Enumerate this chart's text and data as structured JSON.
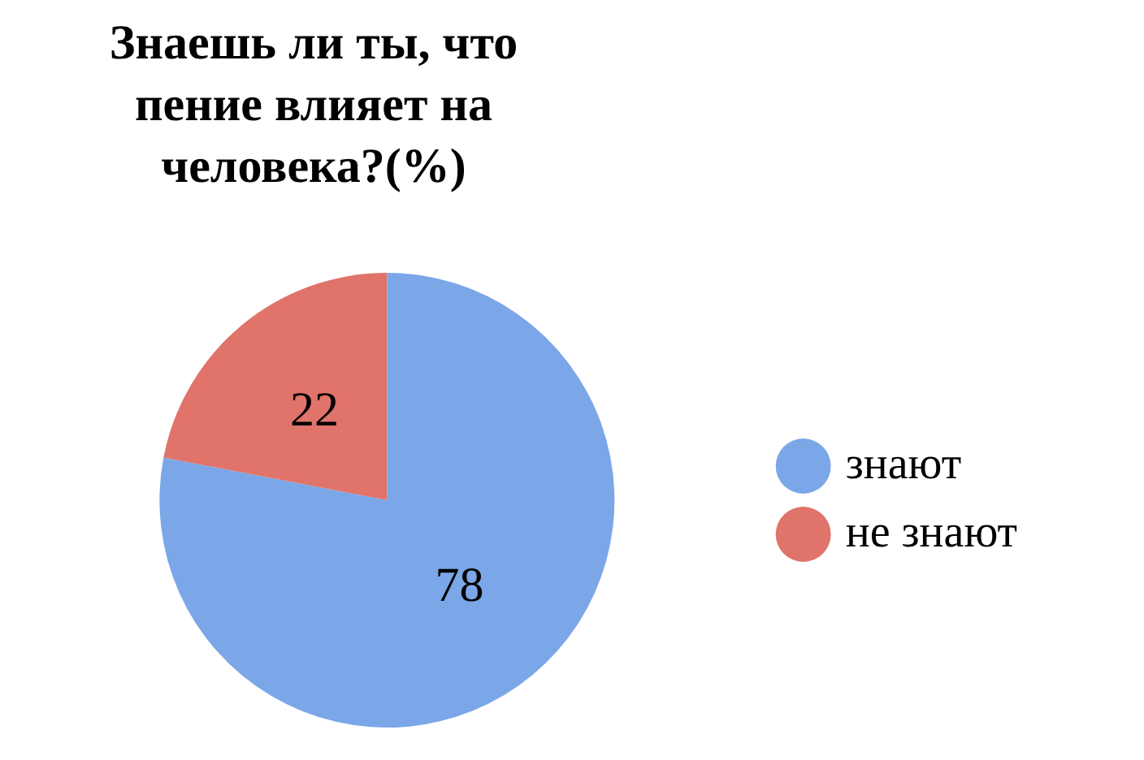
{
  "chart_data": {
    "type": "pie",
    "title": "Знаешь ли ты, что пение влияет на человека?(%)",
    "categories": [
      "знают",
      "не знают"
    ],
    "values": [
      78,
      22
    ],
    "colors": [
      "#7ba7e8",
      "#e0736a"
    ],
    "data_labels": true,
    "legend": "right"
  }
}
